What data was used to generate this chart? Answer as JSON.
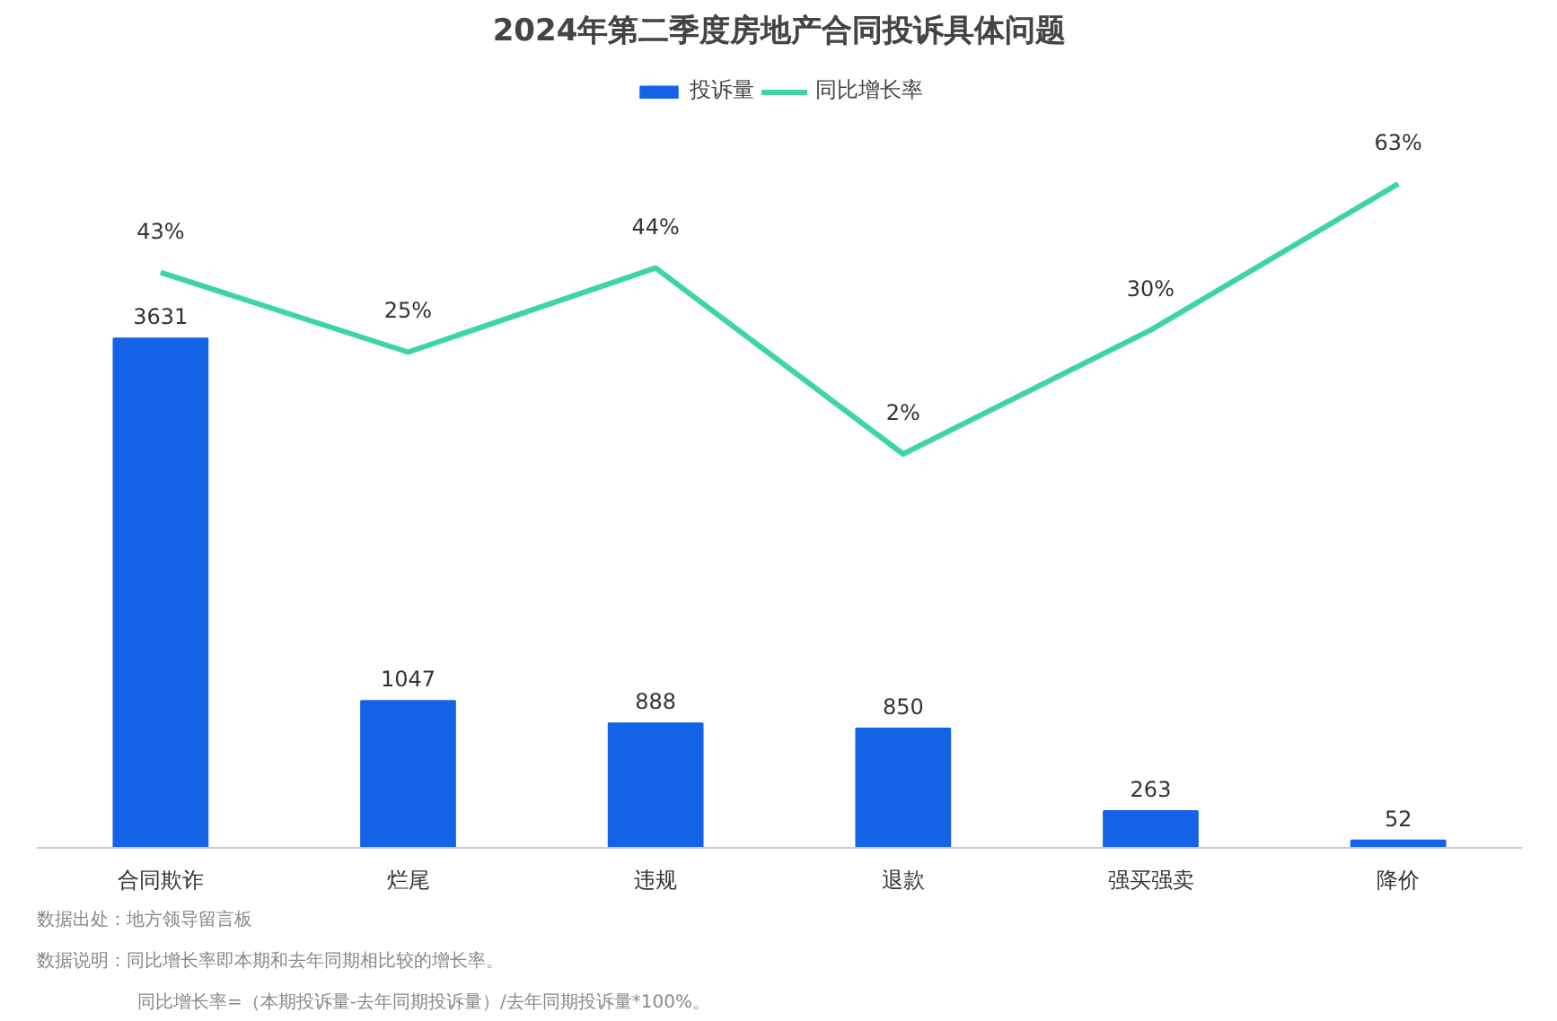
{
  "chart_data": {
    "type": "bar",
    "title": "2024年第二季度房地产合同投诉具体问题",
    "categories": [
      "合同欺诈",
      "烂尾",
      "违规",
      "退款",
      "强买强卖",
      "降价"
    ],
    "series": [
      {
        "name": "投诉量",
        "color": "#1463e6",
        "values": [
          3631,
          1047,
          888,
          850,
          263,
          52
        ],
        "value_labels": [
          "3631",
          "1047",
          "888",
          "850",
          "263",
          "52"
        ]
      },
      {
        "name": "同比增长率",
        "type": "line",
        "axis": "y2",
        "color": "#3dd6a0",
        "values": [
          43,
          25,
          44,
          2,
          30,
          63
        ],
        "value_labels": [
          "43%",
          "25%",
          "44%",
          "2%",
          "30%",
          "63%"
        ]
      }
    ],
    "legend": "top",
    "grid": false,
    "marker": "none",
    "line_style": "solid",
    "annotations": [
      "数据出处：地方领导留言板",
      "数据说明：同比增长率即本期和去年同期相比较的增长率。",
      "同比增长率=（本期投诉量-去年同期投诉量）/去年同期投诉量*100%。"
    ]
  }
}
